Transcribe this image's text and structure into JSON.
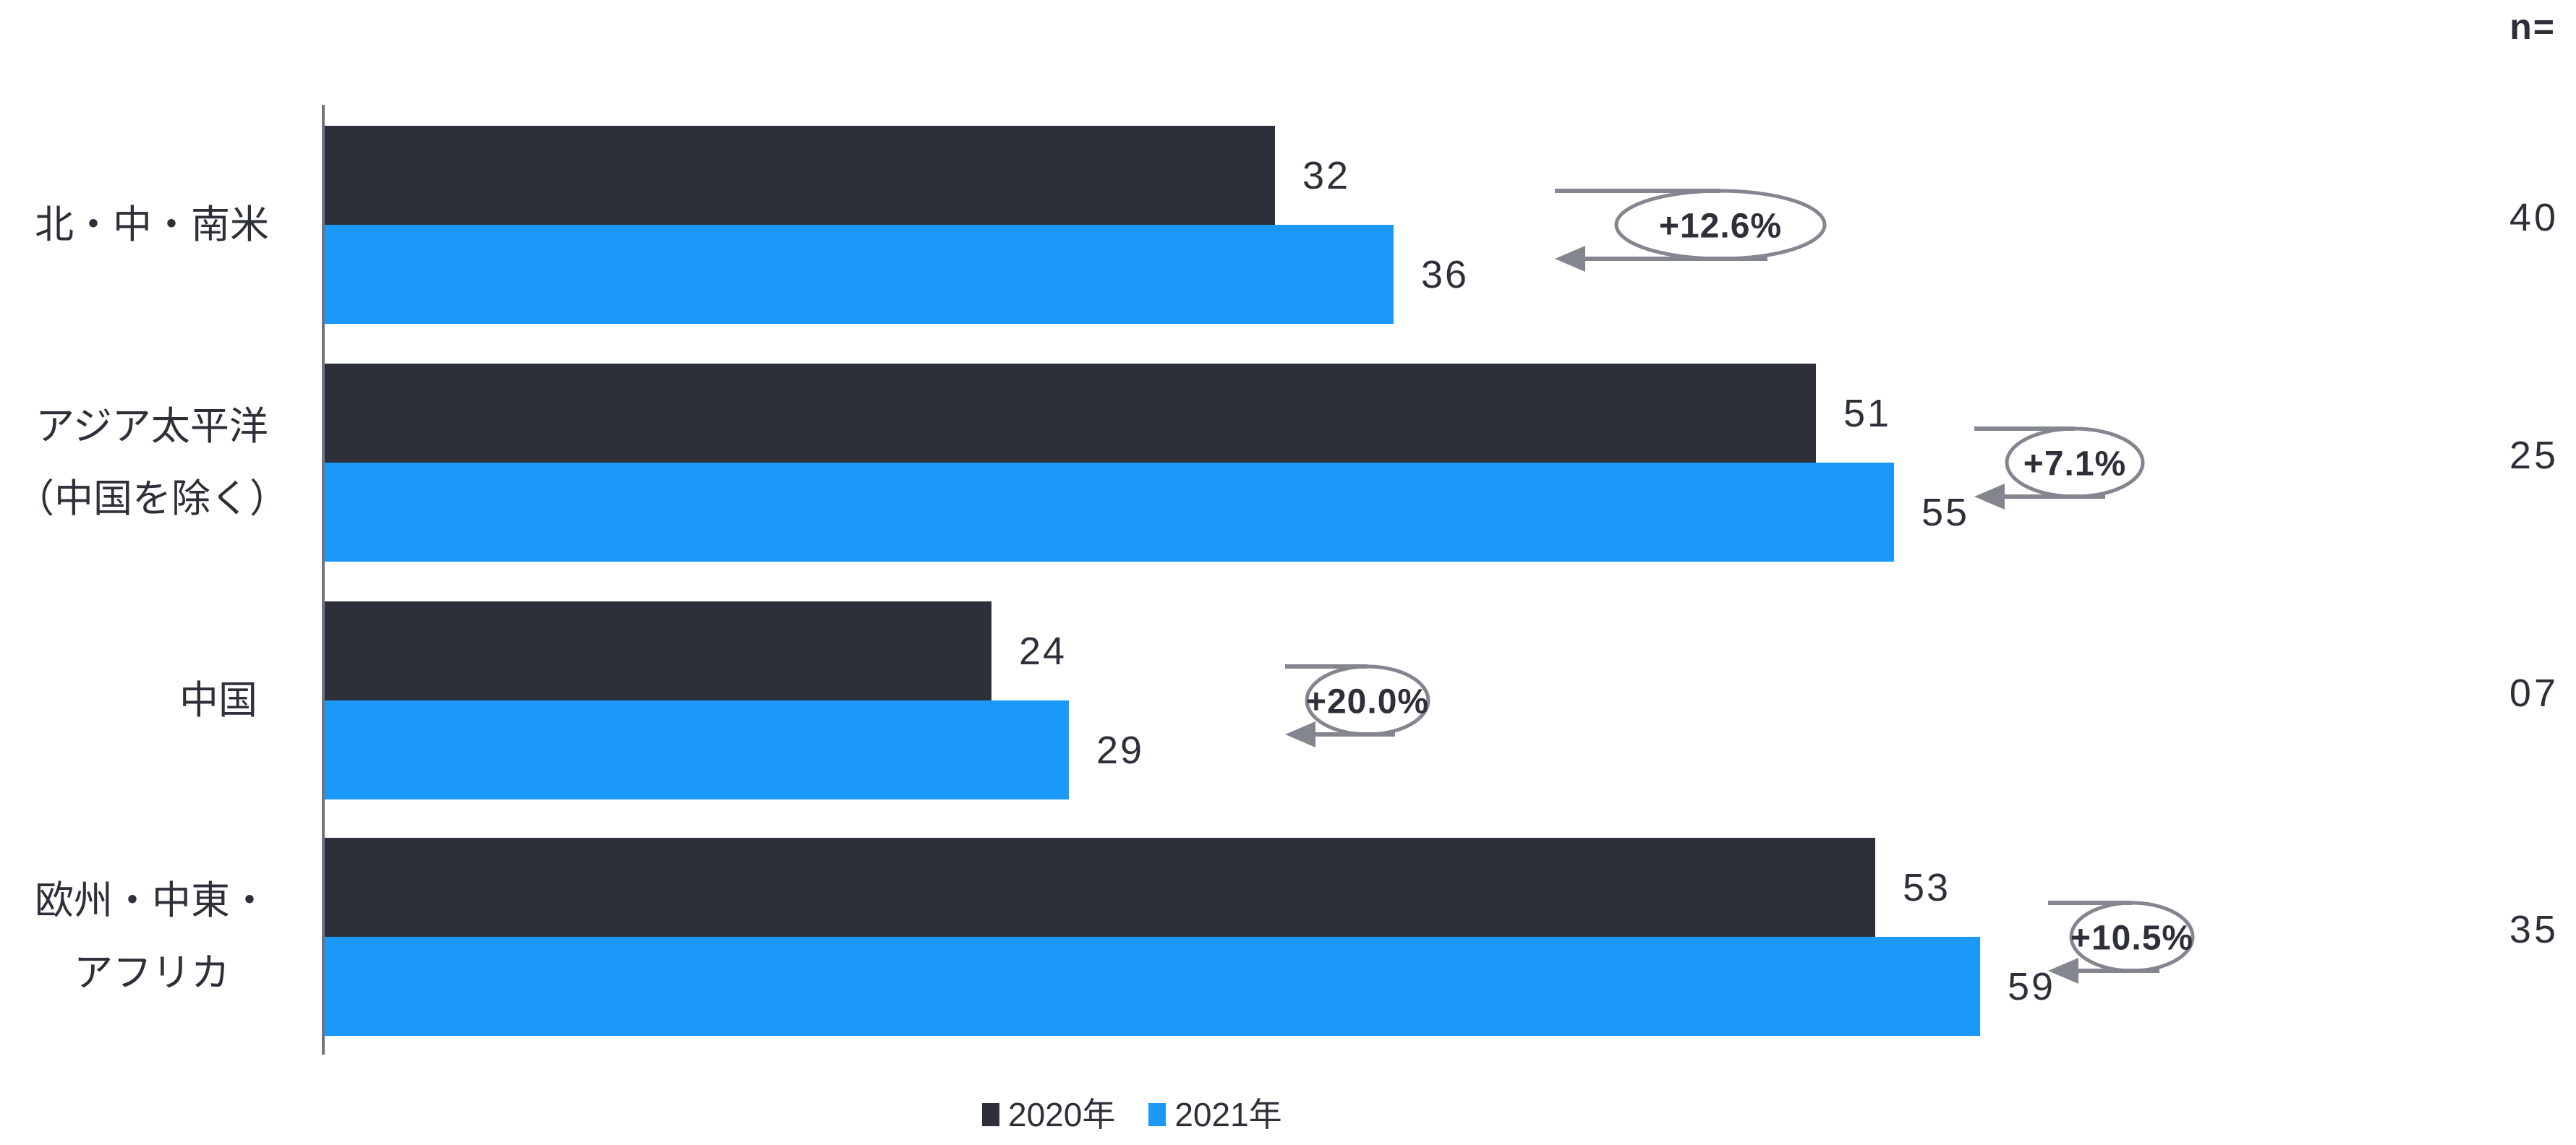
{
  "chart_data": {
    "type": "bar",
    "orientation": "horizontal",
    "title": "",
    "categories": [
      "北・中・南米",
      "アジア太平洋（中国を除く）",
      "中国",
      "欧州・中東・アフリカ"
    ],
    "category_lines": [
      [
        "北・中・南米"
      ],
      [
        "アジア太平洋",
        "（中国を除く）"
      ],
      [
        "中国"
      ],
      [
        "欧州・中東・",
        "アフリカ"
      ]
    ],
    "series": [
      {
        "name": "2020年",
        "color": "#2e3039",
        "values": [
          32,
          51,
          24,
          53
        ]
      },
      {
        "name": "2021年",
        "color": "#1b99f9",
        "values": [
          36,
          55,
          29,
          59
        ]
      }
    ],
    "growth_labels": [
      "+12.6%",
      "+7.1%",
      "+20.0%",
      "+10.5%"
    ],
    "n_column": {
      "header": "n=",
      "values": [
        "40",
        "25",
        "07",
        "35"
      ]
    },
    "value_labels_shown": true,
    "legend_position": "bottom",
    "grid": false,
    "value_axis_hidden": true
  },
  "colors": {
    "bar_2020": "#2e3039",
    "bar_2021": "#1b99f9",
    "text": "#2e3039",
    "annotation_gray": "#84868f",
    "axis_line": "#6f7383"
  }
}
